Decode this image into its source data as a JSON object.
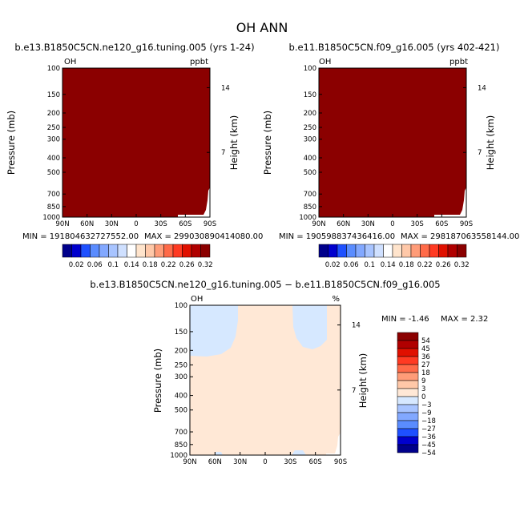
{
  "figure_title": "OH  ANN",
  "chart_data": [
    {
      "type": "heatmap",
      "title": "b.e13.B1850C5CN.ne120_g16.tuning.005 (yrs 1-24)",
      "variable": "OH",
      "units": "ppbt",
      "ylabel": "Pressure (mb)",
      "y2label": "Height (km)",
      "x_ticks": [
        "90N",
        "60N",
        "30N",
        "0",
        "30S",
        "60S",
        "90S"
      ],
      "y_ticks": [
        "100",
        "150",
        "200",
        "250",
        "300",
        "400",
        "500",
        "700",
        "850",
        "1000"
      ],
      "y2_ticks": [
        "14",
        "7"
      ],
      "min_label": "MIN = 191804632727552.00",
      "max_label": "MAX = 299030890414080.00",
      "fill_level": "0.32",
      "colorbar_levels": [
        "0.02",
        "0.06",
        "0.1",
        "0.14",
        "0.18",
        "0.22",
        "0.26",
        "0.32"
      ]
    },
    {
      "type": "heatmap",
      "title": "b.e11.B1850C5CN.f09_g16.005 (yrs 402-421)",
      "variable": "OH",
      "units": "ppbt",
      "ylabel": "Pressure (mb)",
      "y2label": "Height (km)",
      "x_ticks": [
        "90N",
        "60N",
        "30N",
        "0",
        "30S",
        "60S",
        "90S"
      ],
      "y_ticks": [
        "100",
        "150",
        "200",
        "250",
        "300",
        "400",
        "500",
        "700",
        "850",
        "1000"
      ],
      "y2_ticks": [
        "14",
        "7"
      ],
      "min_label": "MIN = 190598837436416.00",
      "max_label": "MAX = 298187063558144.00",
      "fill_level": "0.32",
      "colorbar_levels": [
        "0.02",
        "0.06",
        "0.1",
        "0.14",
        "0.18",
        "0.22",
        "0.26",
        "0.32"
      ]
    },
    {
      "type": "heatmap",
      "title": "b.e13.B1850C5CN.ne120_g16.tuning.005 − b.e11.B1850C5CN.f09_g16.005",
      "variable": "OH",
      "units": "%",
      "ylabel": "Pressure (mb)",
      "y2label": "Height (km)",
      "x_ticks": [
        "90N",
        "60N",
        "30N",
        "0",
        "30S",
        "60S",
        "90S"
      ],
      "y_ticks": [
        "100",
        "150",
        "200",
        "250",
        "300",
        "400",
        "500",
        "700",
        "850",
        "1000"
      ],
      "y2_ticks": [
        "14",
        "7"
      ],
      "min_label": "MIN =   -1.46",
      "max_label": "MAX =    2.32",
      "colorbar_levels": [
        "54",
        "45",
        "36",
        "27",
        "18",
        "9",
        "3",
        "0",
        "−3",
        "−9",
        "−18",
        "−27",
        "−36",
        "−45",
        "−54"
      ]
    }
  ],
  "colors": {
    "abs_palette": [
      "#00008b",
      "#0000cd",
      "#1e50ff",
      "#5a8cff",
      "#82a8ff",
      "#a8c4ff",
      "#cfe0ff",
      "#ffffff",
      "#ffe4cc",
      "#ffc8a8",
      "#ff9c78",
      "#ff6a48",
      "#ff3a22",
      "#e01000",
      "#b00000",
      "#8b0000"
    ],
    "diff_palette": [
      "#8b0000",
      "#b00000",
      "#e01000",
      "#ff3a22",
      "#ff6a48",
      "#ff9c78",
      "#ffc8a8",
      "#ffe8d6",
      "#d6e8ff",
      "#a8c4ff",
      "#82a8ff",
      "#5a8cff",
      "#1e50ff",
      "#0000cd",
      "#00008b"
    ],
    "fill_high": "#8b0000",
    "diff_positive": "#ffe8d6",
    "diff_negative": "#d6e8ff"
  }
}
